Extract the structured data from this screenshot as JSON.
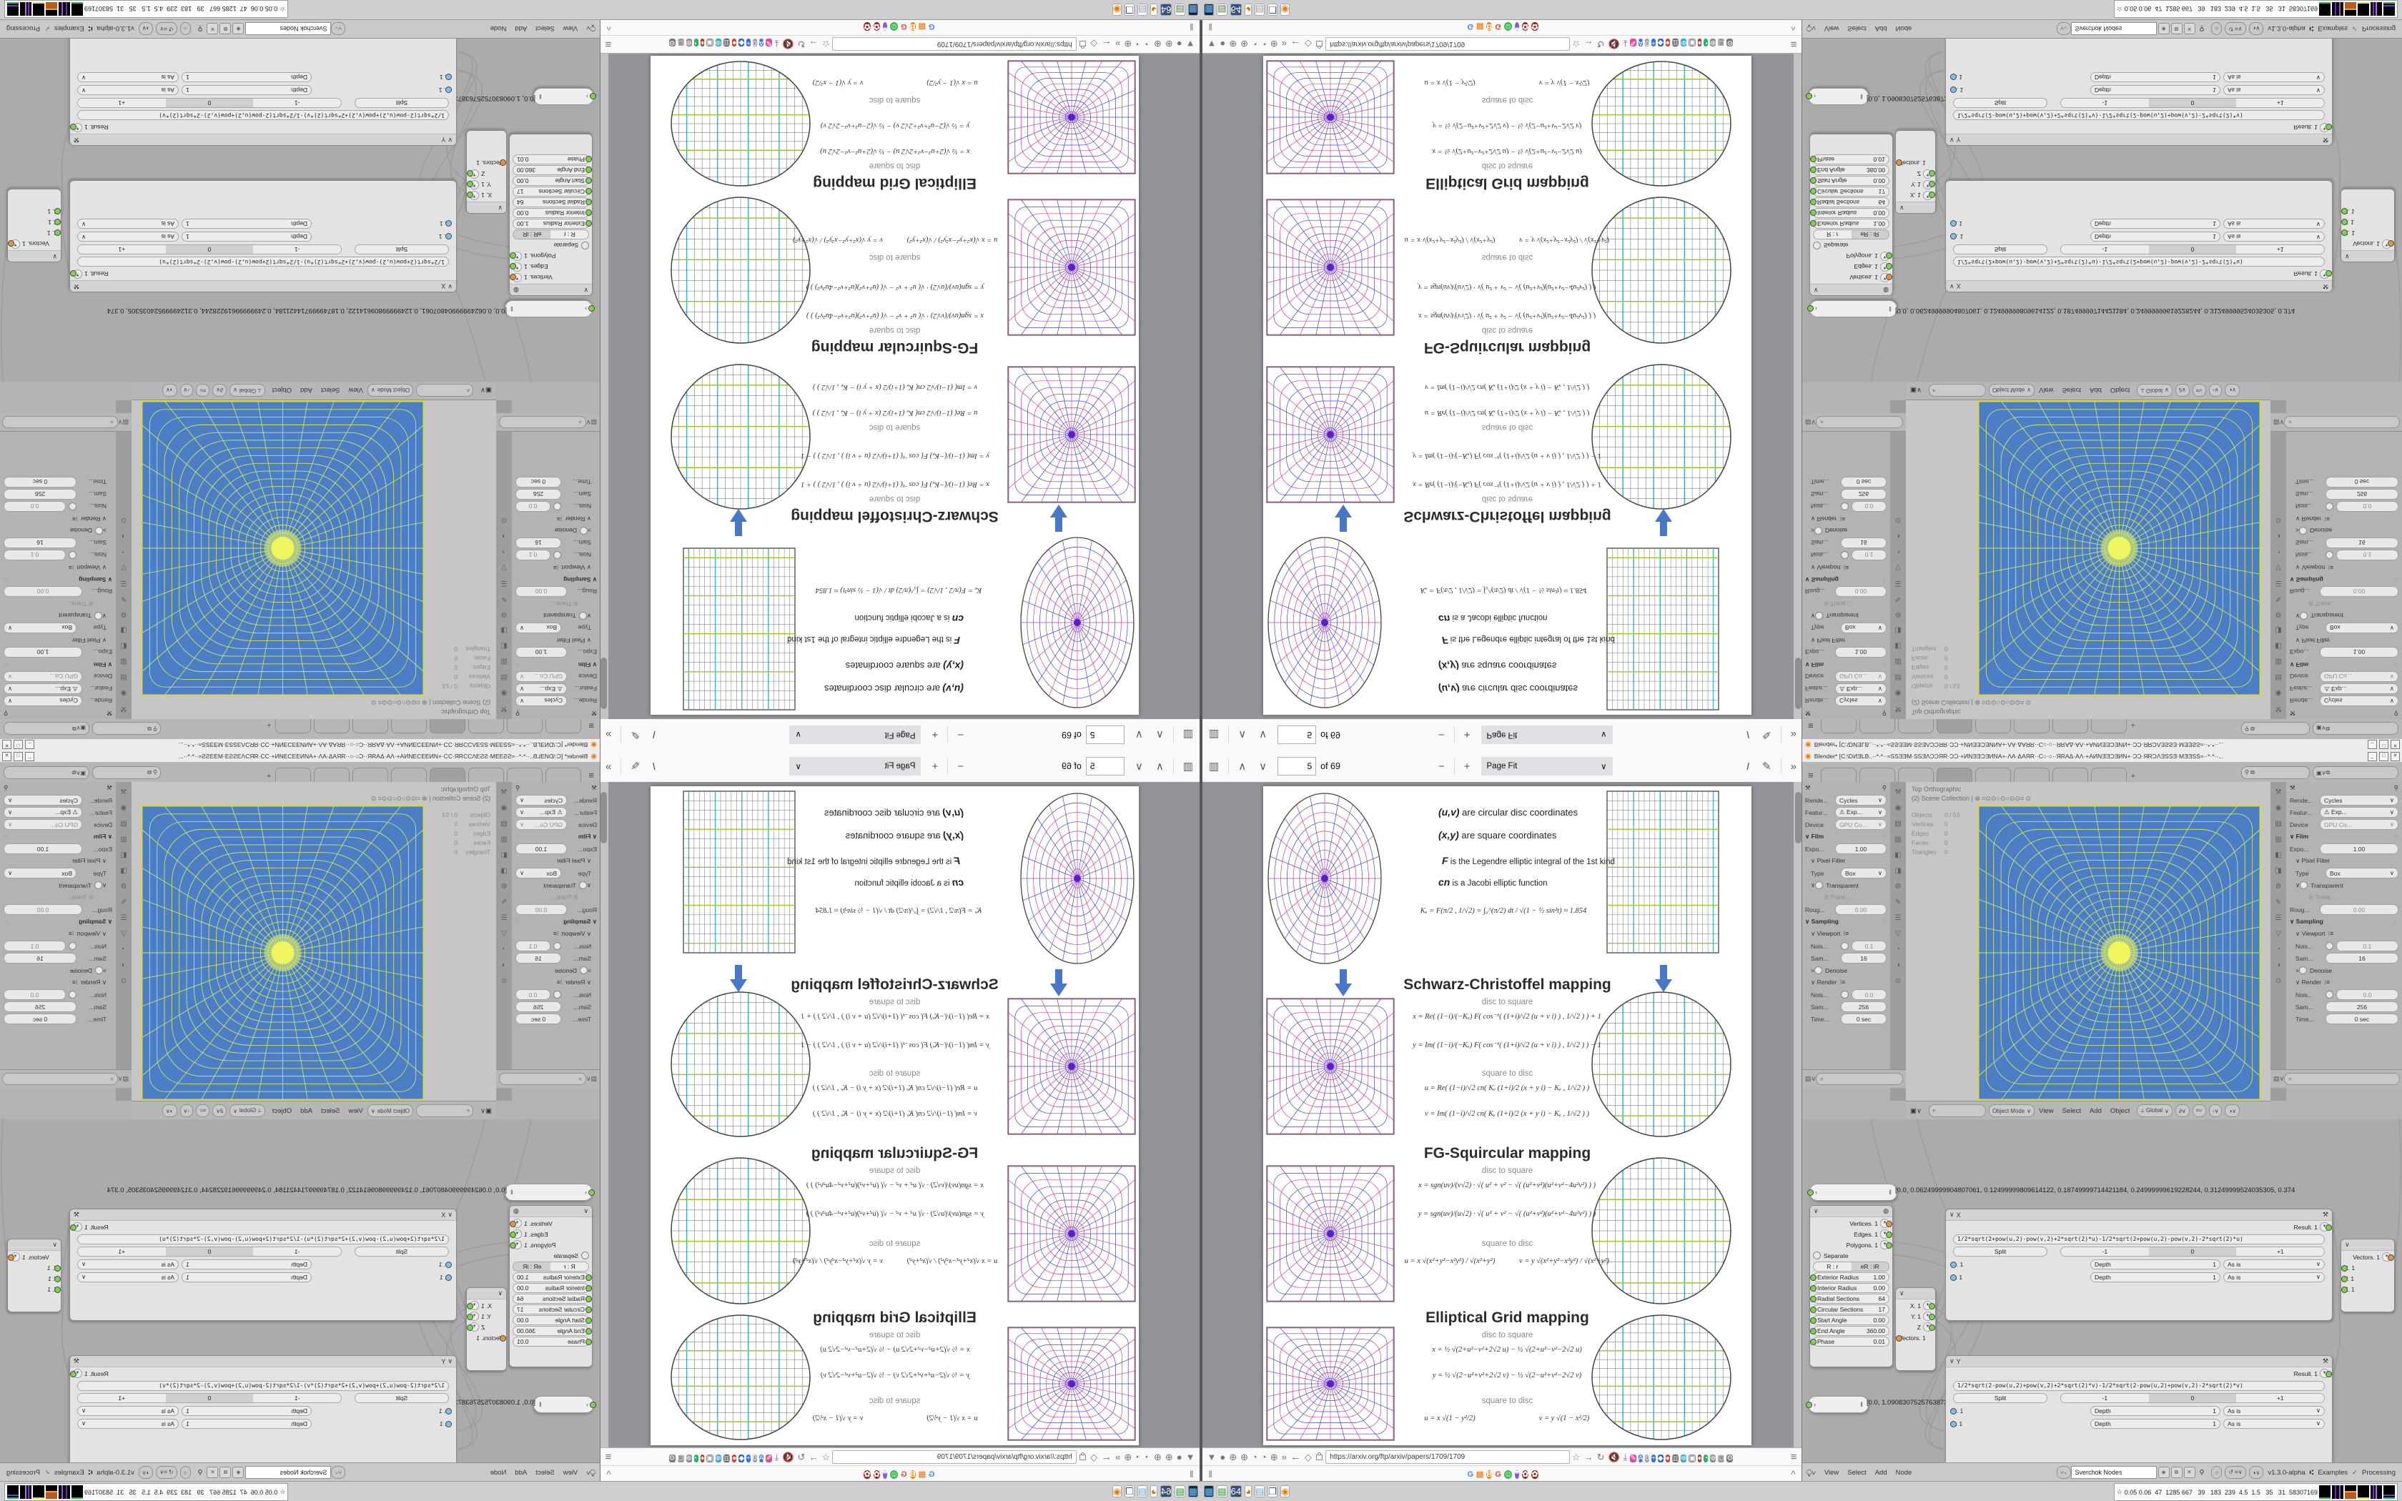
{
  "pdf": {
    "toolbar": {
      "sidebar_icon": "sidebar-toggle",
      "page_up": "previous-page",
      "page_down": "next-page",
      "page": "5",
      "of_pages": "of 69",
      "zoom_out": "−",
      "zoom_in": "+",
      "zoom_select": "Page Fit",
      "text_tool": "I",
      "draw_tool": "✎",
      "more_tools": "»"
    },
    "intro": {
      "l1b": "(u,v)",
      "l1": " are circular disc coordinates",
      "l2b": "(x,y)",
      "l2": " are square coordinates",
      "l3b": "F",
      "l3": " is the Legendre elliptic integral of the 1st kind",
      "l4b": "cn",
      "l4": " is a Jacobi elliptic function",
      "ke": "Kₑ = F(π/2 , 1/√2) = ∫₀^(π/2) dt / √(1 − ½ sin²t)  ≈ 1.854"
    },
    "labels": {
      "d2s": "disc to square",
      "s2d": "square to disc"
    },
    "sections": {
      "sc": {
        "title": "Schwarz-Christoffel mapping",
        "f1": "x = Re( (1−i)/(−Kₑ) F( cos⁻¹( (1+i)/√2 (u + v i) ) , 1/√2 ) ) + 1",
        "f2": "y = Im( (1−i)/(−Kₑ) F( cos⁻¹( (1+i)/√2 (u + v i) ) , 1/√2 ) ) − 1",
        "f3": "u = Re( (1−i)/√2 cn( Kₑ (1+i)/2 (x + y i) − Kₑ , 1/√2 ) )",
        "f4": "v = Im( (1−i)/√2 cn( Kₑ (1+i)/2 (x + y i) − Kₑ , 1/√2 ) )"
      },
      "fg": {
        "title": "FG-Squircular mapping",
        "f1": "x = sgn(uv)/(v√2) · √( u² + v² − √( (u²+v²)(u²+v²−4u²v²) ) )",
        "f2": "y = sgn(uv)/(u√2) · √( u² + v² − √( (u²+v²)(u²+v²−4u²v²) ) )",
        "f3": "u = x √(x²+y²−x²y²) / √(x²+y²)",
        "f4": "v = y √(x²+y²−x²y²) / √(x²+y²)"
      },
      "eg": {
        "title": "Elliptical Grid mapping",
        "f1": "x = ½ √(2+u²−v²+2√2 u)  −  ½ √(2+u²−v²−2√2 u)",
        "f2": "y = ½ √(2−u²+v²+2√2 v)  −  ½ √(2−u²+v²−2√2 v)",
        "f3": "u = x √(1 − y²/2)",
        "f4": "v = y √(1 − x²/2)"
      }
    }
  },
  "browser": {
    "url": "https://arxiv.org/ftp/arxiv/papers/1709/1709",
    "back": "←",
    "fwd": "→",
    "overflow": "»",
    "menu": "≡",
    "collapse": "^",
    "pause": "‖",
    "left_icons": [
      {
        "g": "▼",
        "c": "#2b6fd4"
      },
      {
        "g": "●",
        "c": "#7fae3f"
      },
      {
        "g": "⊕",
        "c": "#787878"
      },
      {
        "g": "⊕",
        "c": "#787878"
      },
      {
        "g": "◔",
        "c": "#787878"
      },
      {
        "g": "◔",
        "c": "#787878"
      },
      {
        "g": "⊕",
        "c": "#787878"
      },
      {
        "g": "»",
        "c": "#787878"
      }
    ],
    "ext_icons": [
      {
        "g": "✎",
        "c": "#d94f9b"
      },
      {
        "g": "A",
        "c": "#3b78e7"
      },
      {
        "g": "0",
        "c": "#9a9aa2"
      },
      {
        "g": "+",
        "c": "#2f6fe4"
      },
      {
        "g": "◆",
        "c": "#2b62d9"
      },
      {
        "g": "●",
        "c": "#d63b2f"
      },
      {
        "g": "▥",
        "c": "#4a4a4a"
      },
      {
        "g": "⊕",
        "c": "#2fa4d9"
      },
      {
        "g": "▣",
        "c": "#8a8a8a"
      },
      {
        "g": "♦",
        "c": "#b3322a"
      },
      {
        "g": "◔",
        "c": "#27b25c"
      },
      {
        "g": "⊕",
        "c": "#8a8a8a"
      },
      {
        "g": "❒",
        "c": "#9a9aa2"
      },
      {
        "g": "⚙",
        "c": "#777777"
      }
    ],
    "favicons": [
      {
        "g": "G",
        "fg": "#4285F4",
        "bg": "transparent"
      },
      {
        "g": "▤",
        "fg": "#f48024",
        "bg": "transparent"
      },
      {
        "g": "B",
        "fg": "#fff",
        "bg": "#ff8000"
      },
      {
        "g": "G",
        "fg": "#ea4335",
        "bg": "transparent"
      },
      {
        "g": "☺",
        "fg": "#fff",
        "bg": "#3cba54"
      },
      {
        "g": "❞",
        "fg": "#fff",
        "bg": "#7a5fe0"
      },
      {
        "g": "✿",
        "fg": "#fff",
        "bg": "#a01818"
      },
      {
        "g": "✿",
        "fg": "#fff",
        "bg": "#a01818"
      }
    ]
  },
  "blender": {
    "title": "Blender* [C:\\DИƎLB..··*·*··≈SSƎƎM·SSƎΛƆƆЯR·ƆƆ·+ИNƎƎƆƎИNA+·ΛA·ΔAЯR··C○·○··ЯRAΔ·AΛ·+AИNƎƎƆƎИN+·ƆƆ·ЯRƆΛƎSSƎ·MƎƎSS≈··*·*··...",
    "win_min": "_",
    "win_max": "□",
    "win_close": "✕",
    "hamburger": "≡",
    "tab_add": "+",
    "props": {
      "render_l": "Rende...",
      "render_v": "Cycles",
      "feature_l": "Featur...",
      "feature_v": "⚠ Exp...",
      "device_l": "Device",
      "device_v": "GPU Co...",
      "film": "Film",
      "expo_l": "Expo...",
      "expo_v": "1.00",
      "pixel_filter": "Pixel Filter",
      "type_l": "Type",
      "type_v": "Box",
      "transparent": "Transparent",
      "trans": "⊘ Trans...",
      "rough_l": "Roug...",
      "rough_v": "0.00",
      "sampling": "Sampling",
      "viewport": "Viewport",
      "noise_vp_l": "Nois...",
      "noise_vp_v": "0.1",
      "samples_vp_l": "Sam...",
      "samples_vp_v": "16",
      "denoise": "Denoise",
      "render_s": "Render",
      "noise_r_l": "Nois...",
      "noise_r_v": "0.0",
      "samples_r_l": "Sam...",
      "samples_r_v": "256",
      "time_l": "Time...",
      "time_v": "0 sec"
    },
    "tab_icons": [
      "⚒",
      "◉",
      "▤",
      "▥",
      "◧",
      "◨",
      "⚙",
      "✎",
      "☰",
      "▽",
      "◔",
      "◑",
      "⊙"
    ],
    "viewport": {
      "mode_label": "Top Orthographic",
      "collection": "(2) Scene Collection |",
      "ghost_icons": "⊕ ⌗⊙⊙○⊙○⊙⊙⌗ ⊙",
      "stats": {
        "objects_l": "Objects",
        "objects_v": "0 / 53",
        "verts_l": "Vertices",
        "verts_v": "0",
        "edges_l": "Edges",
        "edges_v": "0",
        "faces_l": "Faces",
        "faces_v": "0",
        "tris_l": "Triangles",
        "tris_v": "0"
      },
      "header": {
        "object_mode": "Object Mode",
        "view": "View",
        "select": "Select",
        "add": "Add",
        "object": "Object",
        "global": "Global"
      }
    },
    "nodes": {
      "stetho_a": "[0.0, 0.06249999904807061, 0.12499999809614122, 0.18749999714421184, 0.24999999619228244, 0.31249999524035305, 0.374",
      "stetho_b": "[0.0, 1.0908307525763873e-05, 2.1816615051527747e-05, 3.272492257729162e-05, 4.363323010305549e-05, 5.454153762881936",
      "circle": {
        "out1": "Vertices. 1",
        "out2": "Edges. 1",
        "out3": "Polygons. 1",
        "separate": "Separate",
        "seg_l": "R : r",
        "seg_r": "eR : iR",
        "s1l": "Exterior Radius",
        "s1v": "1.00",
        "s2l": "Interior Radius",
        "s2v": "0.00",
        "s3l": "Radial Sections",
        "s3v": "64",
        "s4l": "Circular Sections",
        "s4v": "17",
        "s5l": "Start Angle",
        "s5v": "0.00",
        "s6l": "End Angle",
        "s6v": "360.00",
        "s7l": "Phase",
        "s7v": "0.01"
      },
      "vec_out": {
        "x": "X. 1",
        "y": "Y. 1",
        "z": "Z",
        "vec": "Vectors. 1"
      },
      "vec_in": {
        "vec": "Vectors. 1",
        "x": "X. 1",
        "y": "Y. 1",
        "z": "Z. 1"
      },
      "formula_x": {
        "name": "X",
        "wrench": "🔧",
        "result": "Result. 1",
        "formula": "1/2*sqrt(2+pow(u,2)-pow(v,2)+2*sqrt(2)*u)-1/2*sqrt(2+pow(u,2)-pow(v,2)-2*sqrt(2)*u)",
        "split": "Split",
        "m1": "-1",
        "z": "0",
        "p1": "+1",
        "u": "u. 1",
        "v": "v. 1",
        "depth": "Depth",
        "depth_v": "1",
        "asis": "As is"
      },
      "formula_y": {
        "name": "Y",
        "wrench": "🔧",
        "result": "Result. 1",
        "formula": "1/2*sqrt(2-pow(u,2)+pow(v,2)+2*sqrt(2)*v)-1/2*sqrt(2-pow(u,2)+pow(v,2)-2*sqrt(2)*v)",
        "split": "Split",
        "m1": "-1",
        "z": "0",
        "p1": "+1",
        "u": "u. 1",
        "v": "v. 1",
        "depth": "Depth",
        "depth_v": "1",
        "asis": "As is"
      }
    },
    "node_header": {
      "view": "View",
      "select": "Select",
      "add": "Add",
      "node": "Node",
      "tree": "Sverchok Nodes",
      "version": "v1.3.0-alpha",
      "examples": "Examples",
      "processing": "Processing",
      "check": "✓"
    }
  },
  "taskbar": {
    "apps": [
      {
        "g": "▦",
        "fg": "#6cc4ff",
        "bg": "#14243d"
      },
      {
        "g": "▤",
        "fg": "#2a7f2a",
        "bg": "#ffffff"
      },
      {
        "g": "64",
        "fg": "#ffffff",
        "bg": "#35507a"
      },
      {
        "g": "◕",
        "fg": "#e66000",
        "bg": "#ffffff"
      },
      {
        "g": "▤",
        "fg": "#7aa0c4",
        "bg": "#ffffff"
      },
      {
        "g": "❐",
        "fg": "#355a8a",
        "bg": "#ffffff"
      },
      {
        "g": "◉",
        "fg": "#e87d0d",
        "bg": "#ffffff"
      }
    ],
    "sysmon": "0.05 0.06  47  1285 667   39   183  239  4.5  1.5   35   31  58307169",
    "sysmon_icon": "☆"
  },
  "figures": {
    "discPolar": {
      "rings": 9,
      "spokes": 24,
      "c1": "#c43f9e",
      "c2": "#4545d2",
      "center": "#5a1ecb",
      "edge": "#444444"
    },
    "squareRect": {
      "cols": 21,
      "rows": 17,
      "line": "#666666",
      "accV": "#39b7c9",
      "accH": "#a4c32b",
      "edge": "#444444"
    },
    "squarePolar": {
      "rings": 10,
      "spokes": 28,
      "c1": "#c43f9e",
      "c2": "#4545d2",
      "center": "#5a1ecb",
      "edge": "#555555"
    },
    "discRect": {
      "cols": 18,
      "rows": 14,
      "line": "#666666",
      "accV": "#39b7c9",
      "accH": "#a4c32b",
      "edge": "#444444"
    },
    "viewportTex": {
      "rings": 19,
      "spokes": 36,
      "bg": "#4b7ec5",
      "line": "#cfe26d",
      "blob": "#eef55f"
    }
  }
}
